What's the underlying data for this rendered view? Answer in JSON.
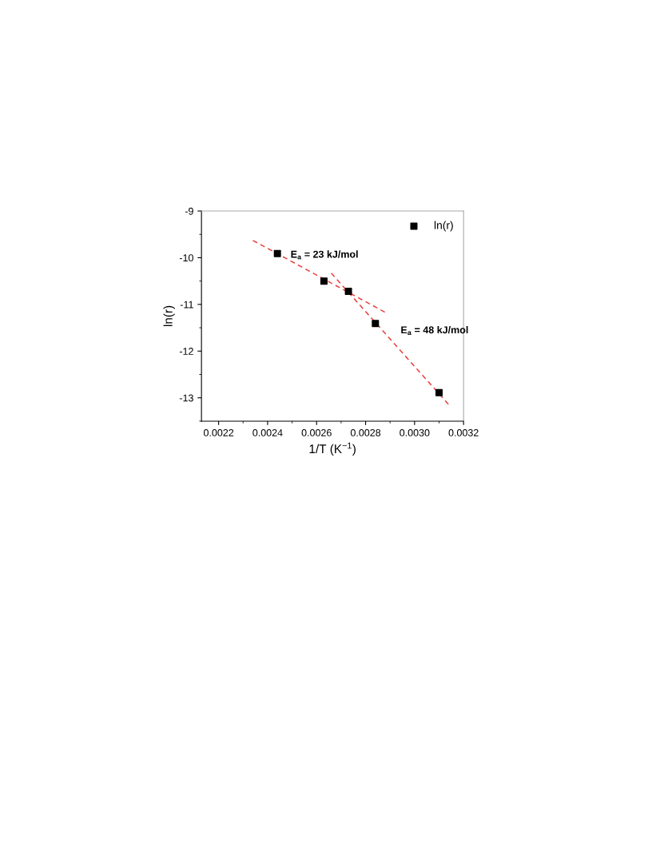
{
  "chart_data": {
    "type": "scatter",
    "xlabel": "1/T (K$^{−1}$)",
    "ylabel": "ln(r)",
    "xlim": [
      0.00213,
      0.0032
    ],
    "xticks": [
      0.0022,
      0.0024,
      0.0026,
      0.0028,
      {
        "value": 0.003,
        "label": "0.0030"
      },
      0.0032
    ],
    "ylim": [
      -13.5,
      -9
    ],
    "yticks": [
      -13,
      -12,
      -11,
      -10,
      -9
    ],
    "grid": false,
    "legend": "top right",
    "series": [
      {
        "name": "ln(r)",
        "color": "#000000",
        "marker": "square",
        "x": [
          0.00244,
          0.00263,
          0.00273,
          0.00284,
          0.0031
        ],
        "values": [
          -9.91,
          -10.5,
          -10.72,
          -11.41,
          -12.89
        ]
      },
      {
        "type": "line",
        "color": "#e8413c",
        "line_style": "dashed",
        "marker": "none",
        "x": [
          0.00234,
          0.00288
        ],
        "values": [
          -9.63,
          -11.17
        ]
      },
      {
        "type": "line",
        "color": "#e8413c",
        "line_style": "dashed",
        "marker": "none",
        "x": [
          0.00266,
          0.00314
        ],
        "values": [
          -10.33,
          -13.15
        ]
      }
    ],
    "annotations": [
      "E$_{a}$ = 23 kJ/mol",
      "E$_{a}$ = 48 kJ/mol"
    ]
  }
}
